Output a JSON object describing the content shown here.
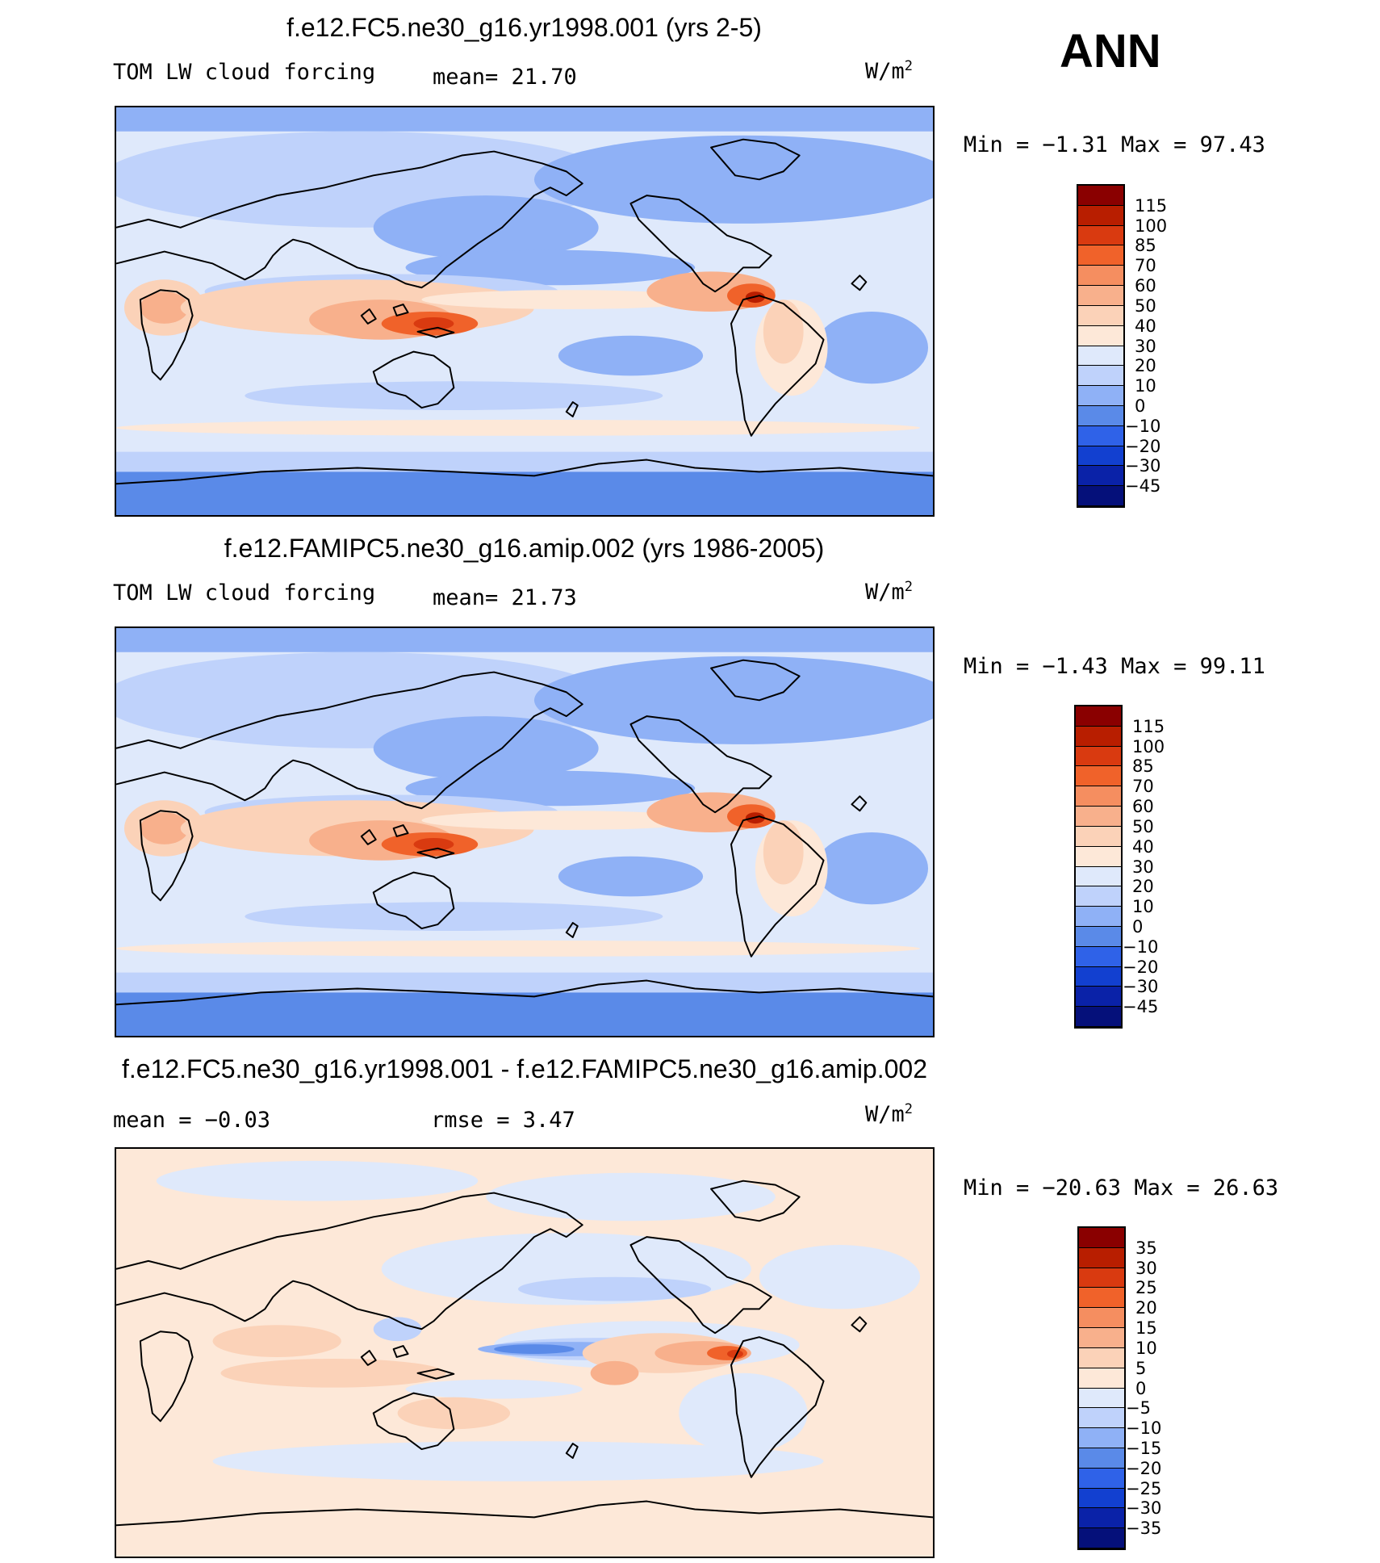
{
  "season": "ANN",
  "panels": [
    {
      "title": "f.e12.FC5.ne30_g16.yr1998.001 (yrs 2-5)",
      "left_label": "TOM LW cloud forcing",
      "stat1": "mean=  21.70",
      "stat2": "",
      "units": "W/m",
      "units_sup": "2",
      "minmax": "Min =   −1.31 Max =   97.43",
      "colorbar": {
        "labels": [
          "115",
          "100",
          "85",
          "70",
          "60",
          "50",
          "40",
          "30",
          "20",
          "10",
          "0",
          "−10",
          "−20",
          "−30",
          "−45"
        ],
        "colors": [
          "#8a0000",
          "#b81e00",
          "#d93a10",
          "#f0622a",
          "#f58e60",
          "#f8b08c",
          "#fbd2b8",
          "#fde8d8",
          "#dfe9fb",
          "#bfd2fb",
          "#8fb1f6",
          "#5a8ae8",
          "#2f62e8",
          "#1240d0",
          "#0a22a8",
          "#05107a"
        ]
      },
      "map": {
        "type": "contour-map",
        "variant": "lwcf"
      }
    },
    {
      "title": "f.e12.FAMIPC5.ne30_g16.amip.002 (yrs 1986-2005)",
      "left_label": "TOM LW cloud forcing",
      "stat1": "mean=  21.73",
      "stat2": "",
      "units": "W/m",
      "units_sup": "2",
      "minmax": "Min =   −1.43 Max =   99.11",
      "colorbar": {
        "labels": [
          "115",
          "100",
          "85",
          "70",
          "60",
          "50",
          "40",
          "30",
          "20",
          "10",
          "0",
          "−10",
          "−20",
          "−30",
          "−45"
        ],
        "colors": [
          "#8a0000",
          "#b81e00",
          "#d93a10",
          "#f0622a",
          "#f58e60",
          "#f8b08c",
          "#fbd2b8",
          "#fde8d8",
          "#dfe9fb",
          "#bfd2fb",
          "#8fb1f6",
          "#5a8ae8",
          "#2f62e8",
          "#1240d0",
          "#0a22a8",
          "#05107a"
        ]
      },
      "map": {
        "type": "contour-map",
        "variant": "lwcf"
      }
    },
    {
      "title": "f.e12.FC5.ne30_g16.yr1998.001 - f.e12.FAMIPC5.ne30_g16.amip.002",
      "left_label": "mean =   −0.03",
      "stat1": "rmse =    3.47",
      "stat2": "",
      "units": "W/m",
      "units_sup": "2",
      "minmax": "Min = −20.63 Max =   26.63",
      "colorbar": {
        "labels": [
          "35",
          "30",
          "25",
          "20",
          "15",
          "10",
          "5",
          "0",
          "−5",
          "−10",
          "−15",
          "−20",
          "−25",
          "−30",
          "−35"
        ],
        "colors": [
          "#8a0000",
          "#b81e00",
          "#d93a10",
          "#f0622a",
          "#f58e60",
          "#f8b08c",
          "#fbd2b8",
          "#fde8d8",
          "#dfe9fb",
          "#bfd2fb",
          "#8fb1f6",
          "#5a8ae8",
          "#2f62e8",
          "#1240d0",
          "#0a22a8",
          "#05107a"
        ]
      },
      "map": {
        "type": "contour-map",
        "variant": "diff"
      }
    }
  ]
}
